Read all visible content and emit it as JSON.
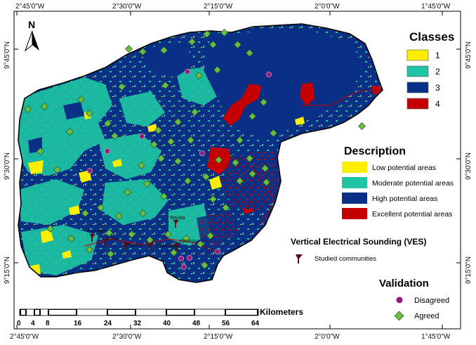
{
  "graticule": {
    "top": [
      "2°45'0\"W",
      "2°30'0\"W",
      "2°15'0\"W",
      "2°0'0\"W",
      "1°45'0\"W"
    ],
    "bottom": [
      "2°45'0\"W",
      "2°30'0\"W",
      "2°15'0\"W",
      "2°0'0\"W",
      "1°45'0\"W"
    ],
    "left": [
      "9°45'0\"N",
      "9°30'0\"N",
      "9°15'0\"N"
    ],
    "right": [
      "9°45'0\"N",
      "9°30'0\"N",
      "9°15'0\"N"
    ]
  },
  "north_arrow": {
    "label": "N"
  },
  "legend_classes": {
    "title": "Classes",
    "items": [
      {
        "label": "1",
        "color": "#ffee00"
      },
      {
        "label": "2",
        "color": "#1fc4a4"
      },
      {
        "label": "3",
        "color": "#0a2f86"
      },
      {
        "label": "4",
        "color": "#c40000"
      }
    ]
  },
  "legend_description": {
    "title": "Description",
    "items": [
      {
        "label": "Low potential areas",
        "color": "#ffee00"
      },
      {
        "label": "Moderate potential areas",
        "color": "#1fc4a4"
      },
      {
        "label": "High potential areas",
        "color": "#0a2f86"
      },
      {
        "label": "Excellent potential areas",
        "color": "#c40000"
      }
    ]
  },
  "legend_ves": {
    "title": "Vertical Electrical Sounding (VES)",
    "item": "Studied communities"
  },
  "legend_validation": {
    "title": "Validation",
    "disagreed": "Disagreed",
    "agreed": "Agreed"
  },
  "scale_bar": {
    "unit": "Kilometers",
    "ticks": [
      "0",
      "4",
      "8",
      "16",
      "24",
      "32",
      "40",
      "48",
      "56",
      "64"
    ]
  },
  "communities": [
    "Konwieri",
    "Kaha",
    "Chamba",
    "Chiabakulu",
    "Wa/ala",
    "Kpongu"
  ],
  "colors": {
    "low": "#ffee00",
    "moderate": "#1fc4a4",
    "high": "#0a2f86",
    "excellent": "#c40000",
    "agreed": "#6abe45",
    "disagreed": "#8e1f7a"
  }
}
